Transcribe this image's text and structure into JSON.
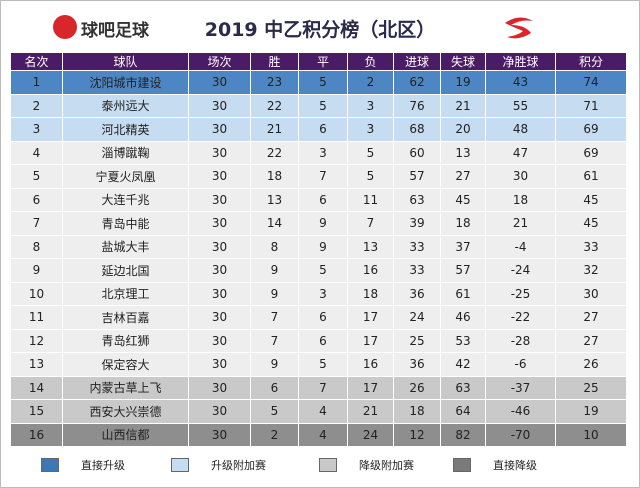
{
  "header": {
    "logo_text": "球吧足球",
    "title": "2019 中乙积分榜（北区）"
  },
  "table": {
    "columns": [
      "名次",
      "球队",
      "场次",
      "胜",
      "平",
      "负",
      "进球",
      "失球",
      "净胜球",
      "积分"
    ],
    "rows": [
      [
        1,
        "沈阳城市建设",
        30,
        23,
        5,
        2,
        62,
        19,
        43,
        74
      ],
      [
        2,
        "泰州远大",
        30,
        22,
        5,
        3,
        76,
        21,
        55,
        71
      ],
      [
        3,
        "河北精英",
        30,
        21,
        6,
        3,
        68,
        20,
        48,
        69
      ],
      [
        4,
        "淄博蹴鞠",
        30,
        22,
        3,
        5,
        60,
        13,
        47,
        69
      ],
      [
        5,
        "宁夏火凤凰",
        30,
        18,
        7,
        5,
        57,
        27,
        30,
        61
      ],
      [
        6,
        "大连千兆",
        30,
        13,
        6,
        11,
        63,
        45,
        18,
        45
      ],
      [
        7,
        "青岛中能",
        30,
        14,
        9,
        7,
        39,
        18,
        21,
        45
      ],
      [
        8,
        "盐城大丰",
        30,
        8,
        9,
        13,
        33,
        37,
        -4,
        33
      ],
      [
        9,
        "延边北国",
        30,
        9,
        5,
        16,
        33,
        57,
        -24,
        32
      ],
      [
        10,
        "北京理工",
        30,
        9,
        3,
        18,
        36,
        61,
        -25,
        30
      ],
      [
        11,
        "吉林百嘉",
        30,
        7,
        6,
        17,
        24,
        46,
        -22,
        27
      ],
      [
        12,
        "青岛红狮",
        30,
        7,
        6,
        17,
        25,
        53,
        -28,
        27
      ],
      [
        13,
        "保定容大",
        30,
        9,
        5,
        16,
        36,
        42,
        -6,
        26
      ],
      [
        14,
        "内蒙古草上飞",
        30,
        6,
        7,
        17,
        26,
        63,
        -37,
        25
      ],
      [
        15,
        "西安大兴崇德",
        30,
        5,
        4,
        21,
        18,
        64,
        -46,
        19
      ],
      [
        16,
        "山西信都",
        30,
        2,
        4,
        24,
        12,
        82,
        -70,
        10
      ]
    ]
  },
  "legend": [
    "直接升级",
    "升级附加赛",
    "降级附加赛",
    "直接降级"
  ]
}
